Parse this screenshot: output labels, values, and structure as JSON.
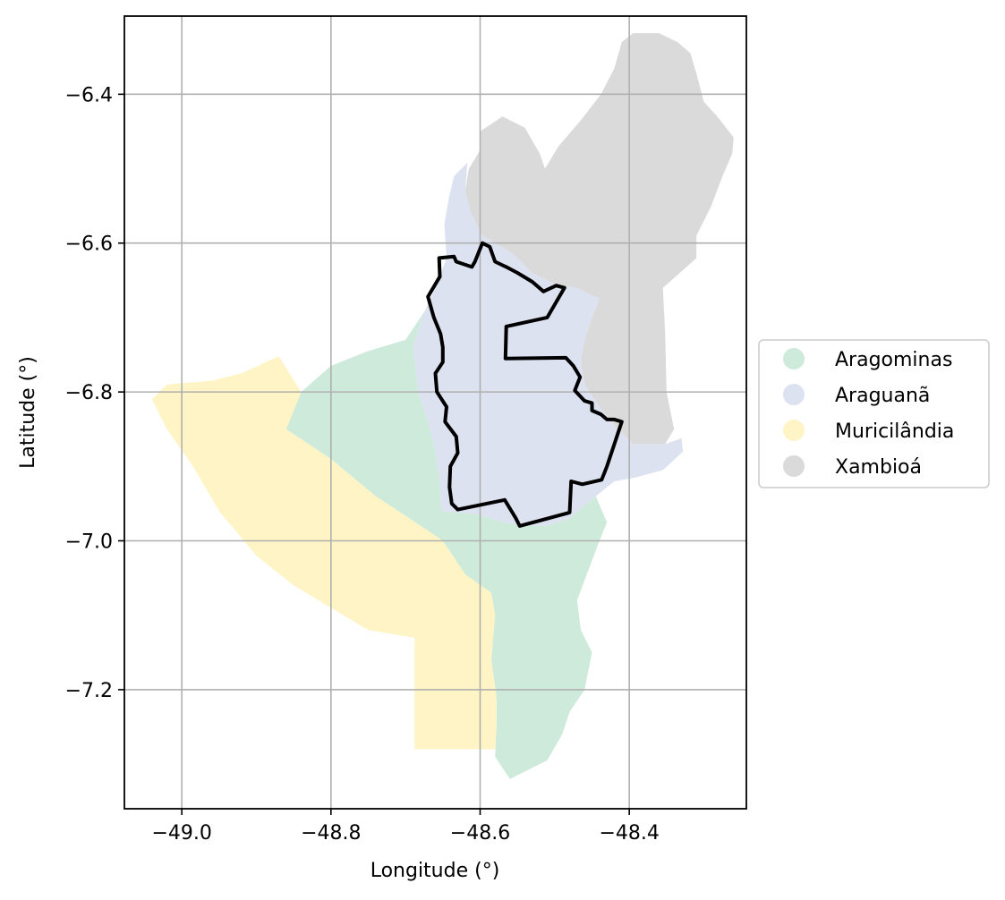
{
  "map": {
    "xlabel": "Longitude (°)",
    "ylabel": "Latitude (°)",
    "xlim": [
      -49.077,
      -48.243
    ],
    "ylim": [
      -7.36,
      -6.295
    ],
    "grid": true,
    "legend_position": "right",
    "x_ticks": [
      {
        "value": -49.0,
        "label": "−49.0"
      },
      {
        "value": -48.8,
        "label": "−48.8"
      },
      {
        "value": -48.6,
        "label": "−48.6"
      },
      {
        "value": -48.4,
        "label": "−48.4"
      }
    ],
    "y_ticks": [
      {
        "value": -6.4,
        "label": "−6.4"
      },
      {
        "value": -6.6,
        "label": "−6.6"
      },
      {
        "value": -6.8,
        "label": "−6.8"
      },
      {
        "value": -7.0,
        "label": "−7.0"
      },
      {
        "value": -7.2,
        "label": "−7.2"
      }
    ],
    "legend": [
      {
        "name": "Aragominas",
        "color": "#cdeadb"
      },
      {
        "name": "Araguanã",
        "color": "#dde2f0"
      },
      {
        "name": "Muricilândia",
        "color": "#fef4c5"
      },
      {
        "name": "Xambioá",
        "color": "#dadada"
      }
    ],
    "regions": [
      {
        "name": "Xambioá",
        "color": "#dadada",
        "coords": [
          [
            -48.513,
            -6.5
          ],
          [
            -48.495,
            -6.47
          ],
          [
            -48.465,
            -6.435
          ],
          [
            -48.438,
            -6.4
          ],
          [
            -48.42,
            -6.365
          ],
          [
            -48.41,
            -6.33
          ],
          [
            -48.395,
            -6.318
          ],
          [
            -48.36,
            -6.318
          ],
          [
            -48.335,
            -6.33
          ],
          [
            -48.318,
            -6.345
          ],
          [
            -48.31,
            -6.372
          ],
          [
            -48.3,
            -6.41
          ],
          [
            -48.282,
            -6.43
          ],
          [
            -48.26,
            -6.458
          ],
          [
            -48.262,
            -6.48
          ],
          [
            -48.275,
            -6.51
          ],
          [
            -48.29,
            -6.55
          ],
          [
            -48.31,
            -6.59
          ],
          [
            -48.31,
            -6.62
          ],
          [
            -48.33,
            -6.638
          ],
          [
            -48.355,
            -6.66
          ],
          [
            -48.352,
            -6.72
          ],
          [
            -48.35,
            -6.8
          ],
          [
            -48.34,
            -6.85
          ],
          [
            -48.352,
            -6.87
          ],
          [
            -48.395,
            -6.87
          ],
          [
            -48.42,
            -6.845
          ],
          [
            -48.44,
            -6.82
          ],
          [
            -48.46,
            -6.79
          ],
          [
            -48.465,
            -6.76
          ],
          [
            -48.46,
            -6.73
          ],
          [
            -48.45,
            -6.7
          ],
          [
            -48.44,
            -6.675
          ],
          [
            -48.47,
            -6.66
          ],
          [
            -48.5,
            -6.655
          ],
          [
            -48.53,
            -6.64
          ],
          [
            -48.555,
            -6.615
          ],
          [
            -48.58,
            -6.6
          ],
          [
            -48.597,
            -6.59
          ],
          [
            -48.612,
            -6.56
          ],
          [
            -48.62,
            -6.53
          ],
          [
            -48.615,
            -6.5
          ],
          [
            -48.6,
            -6.475
          ],
          [
            -48.6,
            -6.45
          ],
          [
            -48.57,
            -6.43
          ],
          [
            -48.54,
            -6.445
          ],
          [
            -48.52,
            -6.48
          ]
        ]
      },
      {
        "name": "Araguanã",
        "color": "#dde2f0",
        "coords": [
          [
            -48.617,
            -6.492
          ],
          [
            -48.635,
            -6.51
          ],
          [
            -48.642,
            -6.54
          ],
          [
            -48.648,
            -6.575
          ],
          [
            -48.645,
            -6.62
          ],
          [
            -48.66,
            -6.66
          ],
          [
            -48.678,
            -6.7
          ],
          [
            -48.69,
            -6.74
          ],
          [
            -48.683,
            -6.8
          ],
          [
            -48.67,
            -6.84
          ],
          [
            -48.66,
            -6.88
          ],
          [
            -48.655,
            -6.92
          ],
          [
            -48.652,
            -6.96
          ],
          [
            -48.6,
            -6.965
          ],
          [
            -48.57,
            -6.975
          ],
          [
            -48.54,
            -6.98
          ],
          [
            -48.51,
            -6.98
          ],
          [
            -48.48,
            -6.97
          ],
          [
            -48.445,
            -6.94
          ],
          [
            -48.42,
            -6.92
          ],
          [
            -48.392,
            -6.915
          ],
          [
            -48.355,
            -6.905
          ],
          [
            -48.328,
            -6.88
          ],
          [
            -48.33,
            -6.862
          ],
          [
            -48.352,
            -6.87
          ],
          [
            -48.395,
            -6.87
          ],
          [
            -48.42,
            -6.845
          ],
          [
            -48.44,
            -6.82
          ],
          [
            -48.46,
            -6.79
          ],
          [
            -48.465,
            -6.76
          ],
          [
            -48.46,
            -6.73
          ],
          [
            -48.45,
            -6.7
          ],
          [
            -48.44,
            -6.675
          ],
          [
            -48.47,
            -6.66
          ],
          [
            -48.5,
            -6.655
          ],
          [
            -48.53,
            -6.64
          ],
          [
            -48.555,
            -6.615
          ],
          [
            -48.58,
            -6.6
          ],
          [
            -48.597,
            -6.59
          ],
          [
            -48.612,
            -6.56
          ],
          [
            -48.62,
            -6.53
          ]
        ]
      },
      {
        "name": "Aragominas",
        "color": "#cdeadb",
        "coords": [
          [
            -48.86,
            -6.85
          ],
          [
            -48.84,
            -6.8
          ],
          [
            -48.8,
            -6.765
          ],
          [
            -48.75,
            -6.745
          ],
          [
            -48.7,
            -6.73
          ],
          [
            -48.672,
            -6.688
          ],
          [
            -48.678,
            -6.7
          ],
          [
            -48.69,
            -6.74
          ],
          [
            -48.683,
            -6.8
          ],
          [
            -48.67,
            -6.84
          ],
          [
            -48.66,
            -6.88
          ],
          [
            -48.655,
            -6.92
          ],
          [
            -48.652,
            -6.96
          ],
          [
            -48.6,
            -6.965
          ],
          [
            -48.57,
            -6.975
          ],
          [
            -48.54,
            -6.98
          ],
          [
            -48.51,
            -6.98
          ],
          [
            -48.48,
            -6.97
          ],
          [
            -48.445,
            -6.94
          ],
          [
            -48.43,
            -6.975
          ],
          [
            -48.44,
            -7.0
          ],
          [
            -48.455,
            -7.04
          ],
          [
            -48.47,
            -7.08
          ],
          [
            -48.465,
            -7.12
          ],
          [
            -48.45,
            -7.15
          ],
          [
            -48.46,
            -7.2
          ],
          [
            -48.48,
            -7.23
          ],
          [
            -48.49,
            -7.26
          ],
          [
            -48.51,
            -7.295
          ],
          [
            -48.56,
            -7.32
          ],
          [
            -48.58,
            -7.29
          ],
          [
            -48.578,
            -7.25
          ],
          [
            -48.578,
            -7.21
          ],
          [
            -48.585,
            -7.16
          ],
          [
            -48.58,
            -7.1
          ],
          [
            -48.585,
            -7.07
          ],
          [
            -48.62,
            -7.045
          ],
          [
            -48.65,
            -7.0
          ],
          [
            -48.672,
            -6.985
          ],
          [
            -48.74,
            -6.94
          ],
          [
            -48.8,
            -6.89
          ]
        ]
      },
      {
        "name": "Muricilândia",
        "color": "#fef4c5",
        "coords": [
          [
            -49.04,
            -6.81
          ],
          [
            -49.02,
            -6.79
          ],
          [
            -48.96,
            -6.785
          ],
          [
            -48.92,
            -6.775
          ],
          [
            -48.87,
            -6.752
          ],
          [
            -48.84,
            -6.8
          ],
          [
            -48.86,
            -6.85
          ],
          [
            -48.8,
            -6.89
          ],
          [
            -48.74,
            -6.94
          ],
          [
            -48.672,
            -6.985
          ],
          [
            -48.65,
            -7.0
          ],
          [
            -48.62,
            -7.045
          ],
          [
            -48.585,
            -7.07
          ],
          [
            -48.58,
            -7.1
          ],
          [
            -48.585,
            -7.16
          ],
          [
            -48.578,
            -7.21
          ],
          [
            -48.578,
            -7.25
          ],
          [
            -48.58,
            -7.28
          ],
          [
            -48.688,
            -7.28
          ],
          [
            -48.688,
            -7.13
          ],
          [
            -48.75,
            -7.12
          ],
          [
            -48.8,
            -7.09
          ],
          [
            -48.85,
            -7.06
          ],
          [
            -48.9,
            -7.02
          ],
          [
            -48.95,
            -6.96
          ],
          [
            -48.985,
            -6.9
          ],
          [
            -49.02,
            -6.85
          ]
        ]
      }
    ],
    "outline": {
      "name": "study-boundary",
      "color": "#000000",
      "coords": [
        [
          -48.655,
          -6.62
        ],
        [
          -48.635,
          -6.618
        ],
        [
          -48.632,
          -6.625
        ],
        [
          -48.611,
          -6.632
        ],
        [
          -48.607,
          -6.625
        ],
        [
          -48.597,
          -6.6
        ],
        [
          -48.587,
          -6.605
        ],
        [
          -48.58,
          -6.625
        ],
        [
          -48.565,
          -6.632
        ],
        [
          -48.55,
          -6.64
        ],
        [
          -48.53,
          -6.652
        ],
        [
          -48.515,
          -6.665
        ],
        [
          -48.498,
          -6.657
        ],
        [
          -48.487,
          -6.66
        ],
        [
          -48.51,
          -6.7
        ],
        [
          -48.565,
          -6.712
        ],
        [
          -48.566,
          -6.755
        ],
        [
          -48.485,
          -6.754
        ],
        [
          -48.475,
          -6.765
        ],
        [
          -48.466,
          -6.78
        ],
        [
          -48.473,
          -6.798
        ],
        [
          -48.46,
          -6.812
        ],
        [
          -48.45,
          -6.815
        ],
        [
          -48.45,
          -6.825
        ],
        [
          -48.438,
          -6.83
        ],
        [
          -48.43,
          -6.837
        ],
        [
          -48.42,
          -6.837
        ],
        [
          -48.41,
          -6.84
        ],
        [
          -48.43,
          -6.9
        ],
        [
          -48.437,
          -6.918
        ],
        [
          -48.463,
          -6.924
        ],
        [
          -48.478,
          -6.92
        ],
        [
          -48.48,
          -6.962
        ],
        [
          -48.547,
          -6.98
        ],
        [
          -48.552,
          -6.97
        ],
        [
          -48.567,
          -6.945
        ],
        [
          -48.63,
          -6.958
        ],
        [
          -48.638,
          -6.95
        ],
        [
          -48.641,
          -6.928
        ],
        [
          -48.64,
          -6.9
        ],
        [
          -48.63,
          -6.882
        ],
        [
          -48.632,
          -6.86
        ],
        [
          -48.647,
          -6.84
        ],
        [
          -48.645,
          -6.82
        ],
        [
          -48.658,
          -6.8
        ],
        [
          -48.66,
          -6.775
        ],
        [
          -48.65,
          -6.76
        ],
        [
          -48.65,
          -6.74
        ],
        [
          -48.653,
          -6.722
        ],
        [
          -48.662,
          -6.7
        ],
        [
          -48.67,
          -6.672
        ],
        [
          -48.654,
          -6.645
        ]
      ]
    }
  }
}
